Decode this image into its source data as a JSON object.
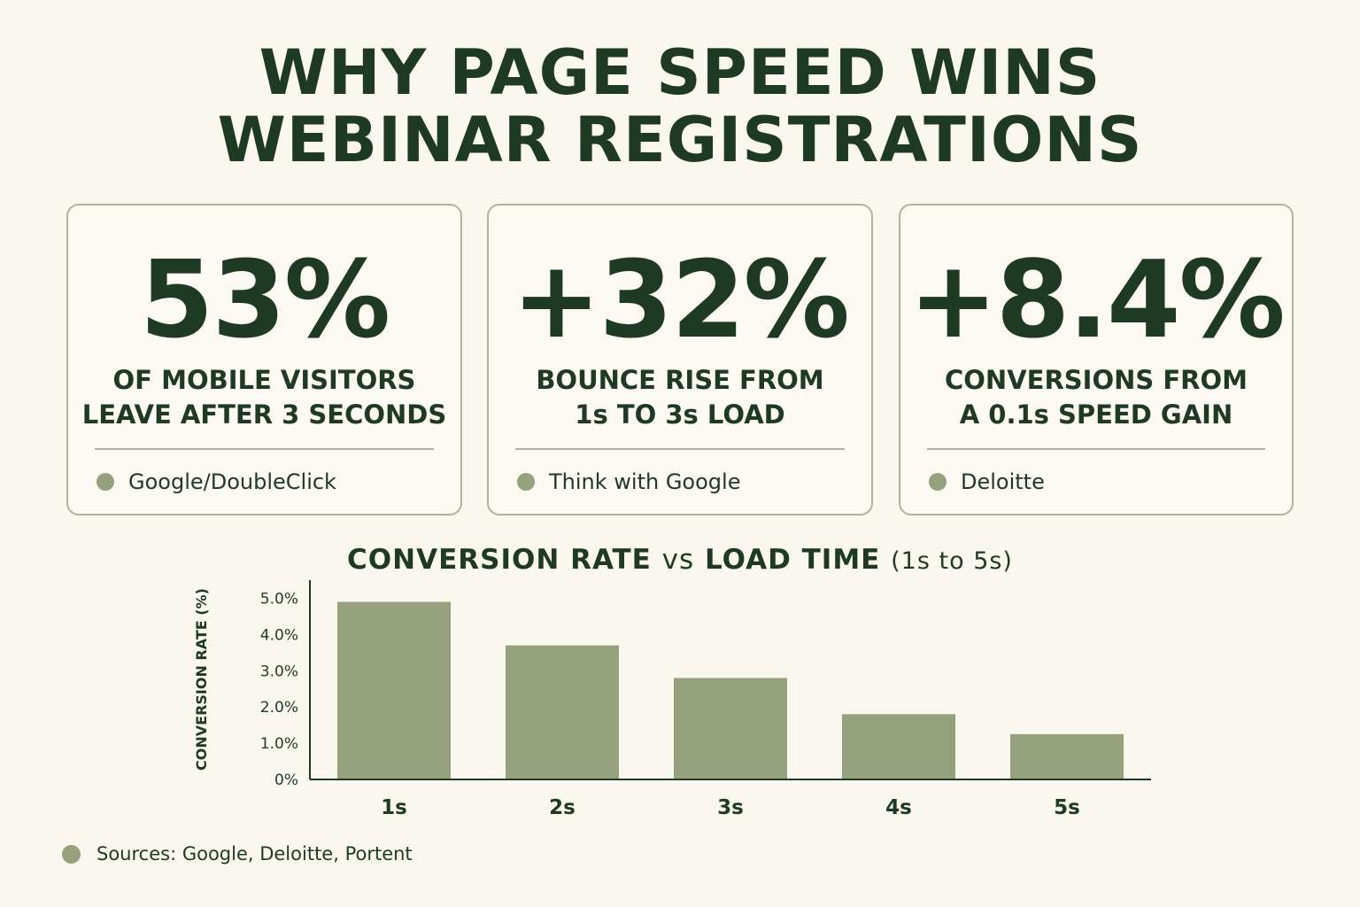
{
  "title": {
    "line1": "WHY PAGE SPEED WINS",
    "line2": "WEBINAR REGISTRATIONS"
  },
  "stats": [
    {
      "value": "53%",
      "desc_line1": "OF MOBILE VISITORS",
      "desc_line2": "LEAVE AFTER 3 SECONDS",
      "source": "Google/DoubleClick"
    },
    {
      "value": "+32%",
      "desc_line1": "BOUNCE RISE FROM",
      "desc_line2": "1s TO 3s LOAD",
      "source": "Think with Google"
    },
    {
      "value": "+8.4%",
      "desc_line1": "CONVERSIONS FROM",
      "desc_line2": "A 0.1s SPEED GAIN",
      "source": "Deloitte"
    }
  ],
  "colors": {
    "background": "#f9f7ee",
    "text": "#1f3a22",
    "bar": "#95a07c",
    "border": "#b3b29d"
  },
  "chart_data": {
    "type": "bar",
    "title_bold_1": "CONVERSION RATE",
    "title_vs": "vs",
    "title_bold_2": "LOAD TIME",
    "title_suffix": "(1s to 5s)",
    "categories": [
      "1s",
      "2s",
      "3s",
      "4s",
      "5s"
    ],
    "values": [
      4.9,
      3.7,
      2.8,
      1.8,
      1.25
    ],
    "ylabel": "CONVERSION RATE (%)",
    "xlabel": "",
    "ylim": [
      0,
      5.5
    ],
    "yticks": [
      0,
      1,
      2,
      3,
      4,
      5
    ],
    "ytick_labels": [
      "0%",
      "1.0%",
      "2.0%",
      "3.0%",
      "4.0%",
      "5.0%"
    ],
    "grid": false,
    "legend": "none"
  },
  "footer": {
    "sources": "Sources: Google, Deloitte, Portent"
  }
}
